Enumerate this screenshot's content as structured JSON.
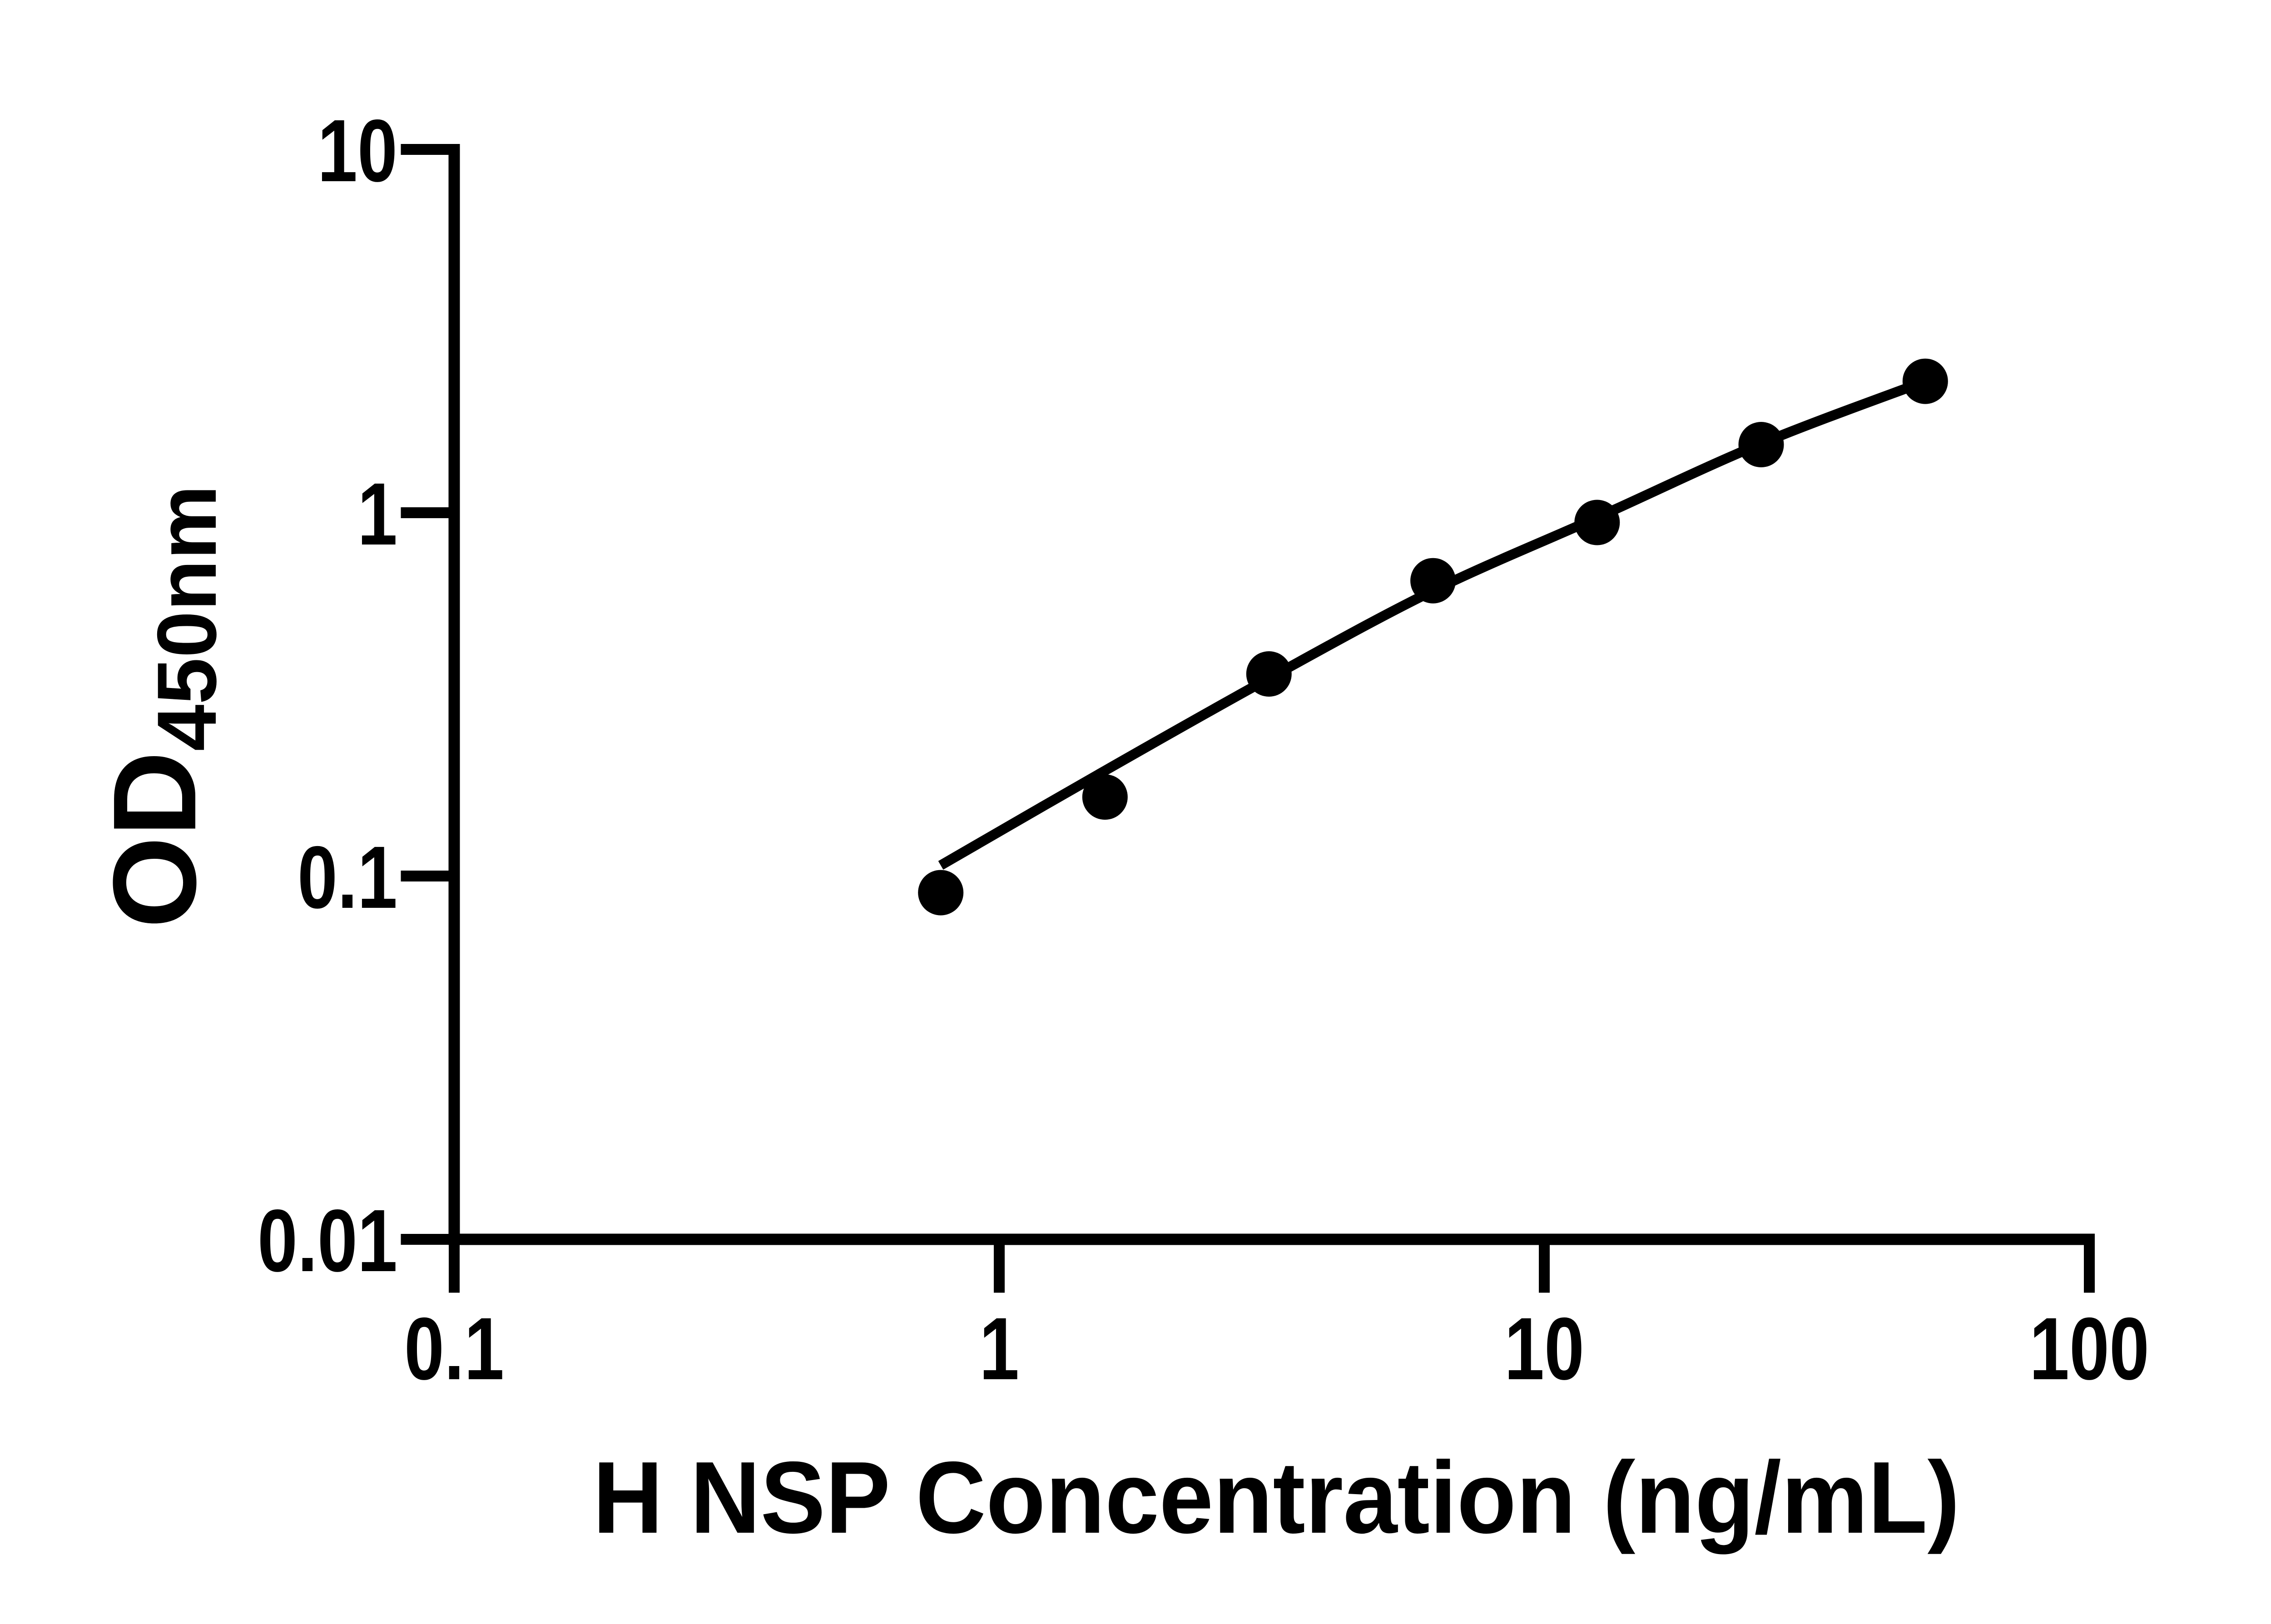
{
  "chart_data": {
    "type": "scatter",
    "title": "",
    "xlabel": "H NSP Concentration (ng/mL)",
    "ylabel": "OD",
    "ylabel_subscript": "450nm",
    "xscale": "log",
    "yscale": "log",
    "xlim": [
      0.1,
      100
    ],
    "ylim": [
      0.01,
      10
    ],
    "x_ticks": [
      0.1,
      1,
      10,
      100
    ],
    "x_tick_labels": [
      "0.1",
      "1",
      "10",
      "100"
    ],
    "y_ticks": [
      10,
      1,
      0.1,
      0.01
    ],
    "y_tick_labels": [
      "10",
      "1",
      "0.1",
      "0.01"
    ],
    "grid": false,
    "legend": false,
    "points": {
      "x": [
        0.781,
        1.563,
        3.125,
        6.25,
        12.5,
        25,
        50
      ],
      "y": [
        0.09,
        0.165,
        0.36,
        0.65,
        0.94,
        1.54,
        2.3
      ]
    },
    "fit_curve": {
      "x": [
        0.781,
        1.563,
        3.125,
        6.25,
        12.5,
        25,
        50
      ],
      "y": [
        0.107,
        0.195,
        0.35,
        0.61,
        0.97,
        1.55,
        2.3
      ]
    },
    "marker_color": "#000000",
    "line_color": "#000000",
    "axis_color": "#000000",
    "background": "#ffffff"
  }
}
